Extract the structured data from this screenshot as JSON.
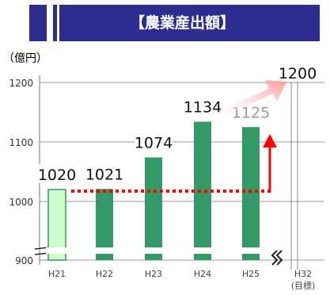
{
  "banner": {
    "title": "【農業産出額】"
  },
  "chart_data": {
    "type": "bar",
    "title": "【農業産出額】",
    "unit_label": "（億円）",
    "categories": [
      "H21",
      "H22",
      "H23",
      "H24",
      "H25",
      "H32\n(目標)"
    ],
    "values": [
      1020,
      1021,
      1074,
      1134,
      1125,
      1200
    ],
    "value_labels": [
      "1020",
      "1021",
      "1074",
      "1134",
      "1125",
      "1200"
    ],
    "bar_styles": [
      "outline",
      "solid",
      "solid",
      "solid",
      "solid",
      "target"
    ],
    "yticks": [
      1200,
      1100,
      1000,
      900
    ],
    "ylim": [
      900,
      1200
    ],
    "axis_break": true,
    "grid": true,
    "colors": {
      "bar": "#339966",
      "bar_outline_fill": "#ccffcc",
      "trend_dotted": "#ff0000",
      "arrow_red": "#ff0000",
      "arrow_target": "#ff9999",
      "banner": "#2d2d8f"
    }
  }
}
